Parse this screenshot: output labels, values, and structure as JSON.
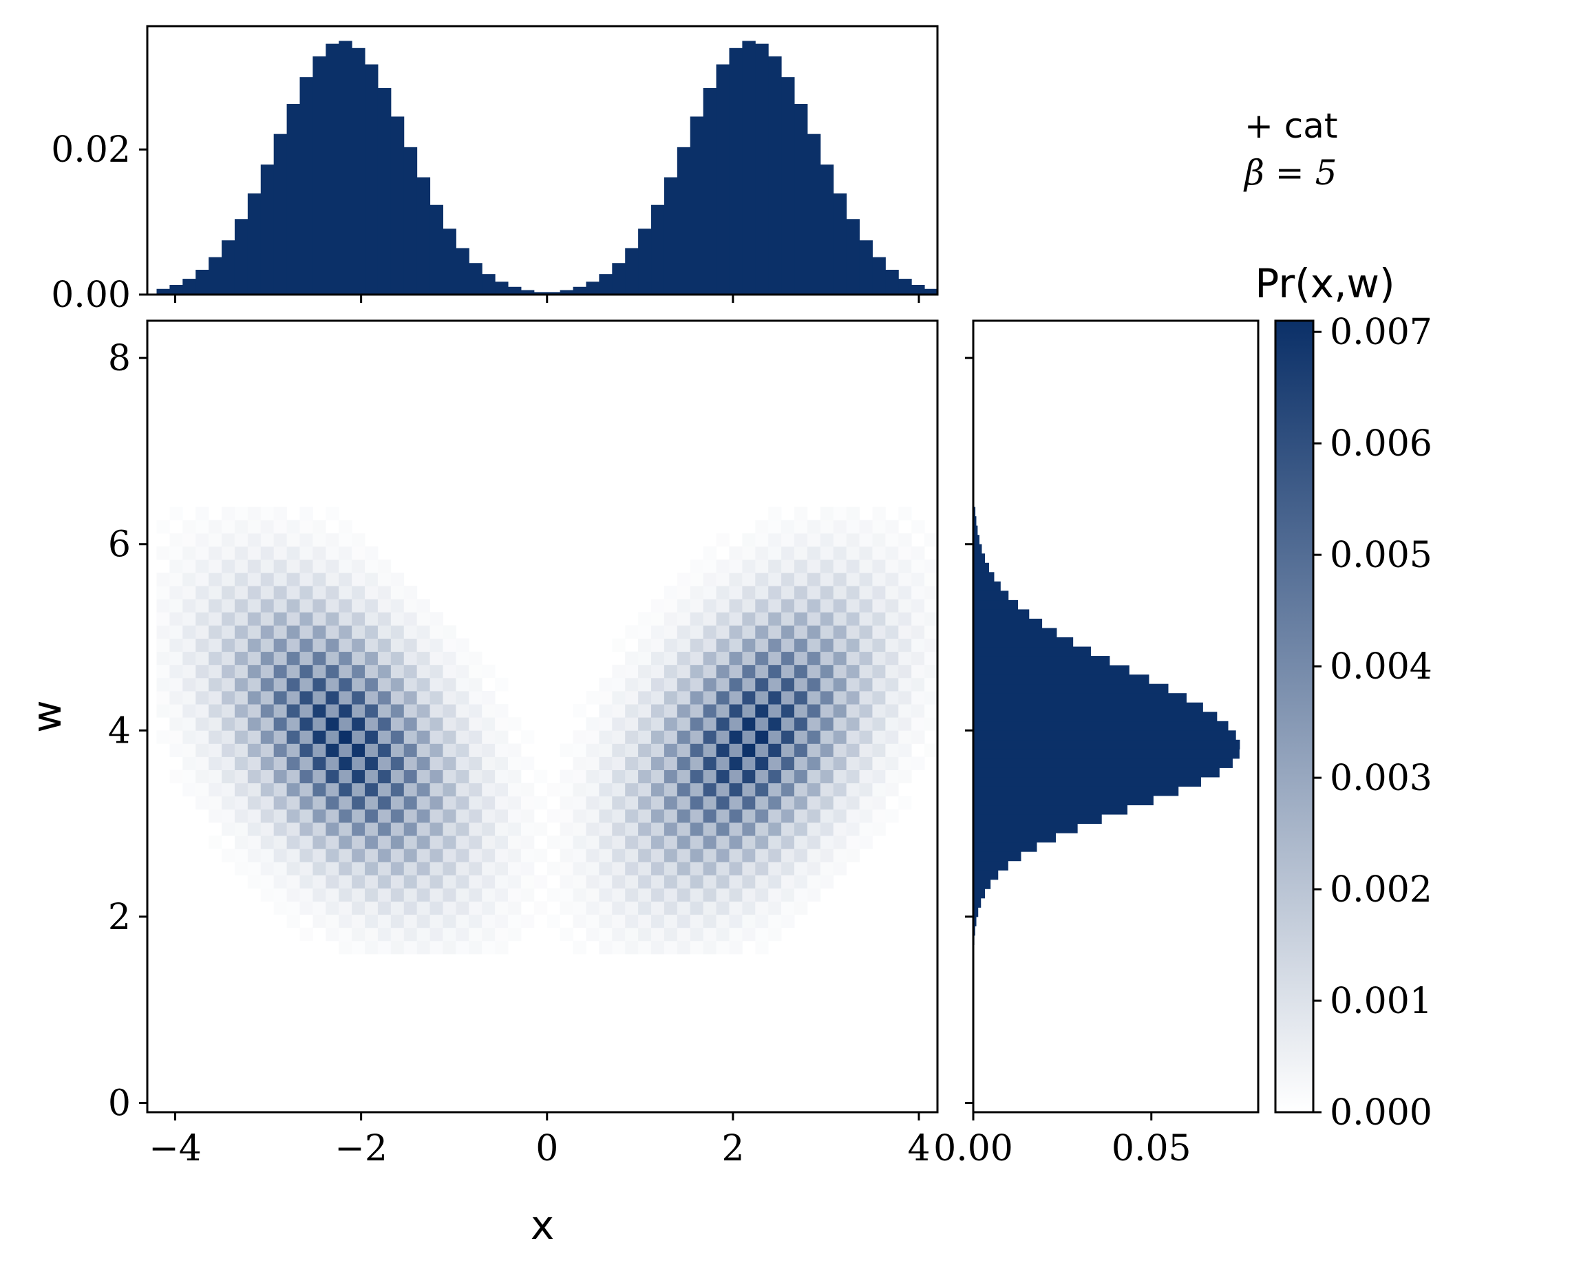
{
  "colors": {
    "bar": "#0b3068",
    "cmap_low": "#ffffff",
    "cmap_high": "#0b3068",
    "frame": "#000000"
  },
  "annotation": {
    "line1": "+ cat",
    "line2": "β = 5"
  },
  "chart_data": [
    {
      "type": "heatmap",
      "name": "joint",
      "xlabel": "x",
      "ylabel": "w",
      "xlim": [
        -4.3,
        4.2
      ],
      "ylim": [
        -0.1,
        8.4
      ],
      "xticks": [
        -4,
        -2,
        0,
        2,
        4
      ],
      "xtick_labels": [
        "−4",
        "−2",
        "0",
        "2",
        "4"
      ],
      "yticks": [
        0,
        2,
        4,
        6,
        8
      ],
      "ytick_labels": [
        "0",
        "2",
        "4",
        "6",
        "8"
      ],
      "grid": false,
      "grid_cells": {
        "x_range": [
          -4.2,
          4.2
        ],
        "x_bins": 60,
        "w_range": [
          1.6,
          6.4
        ],
        "w_bins": 34,
        "pattern": "checkerboard"
      },
      "model": {
        "mode_x": 2.2,
        "sigma_x": 0.78,
        "mode_w": 3.9,
        "sigma_w": 0.82,
        "shape": "bimodal-crescent"
      }
    },
    {
      "type": "bar",
      "name": "marginal-x",
      "xlim": [
        -4.3,
        4.2
      ],
      "ylim": [
        0,
        0.037
      ],
      "yticks": [
        0,
        0.02
      ],
      "ytick_labels": [
        "0.00",
        "0.02"
      ],
      "xticks": [
        -4,
        -2,
        0,
        2,
        4
      ],
      "bins": {
        "range": [
          -4.2,
          4.2
        ],
        "count": 60
      },
      "model": {
        "mode": 2.2,
        "sigma": 0.7,
        "peak": 0.035
      }
    },
    {
      "type": "bar",
      "name": "marginal-w",
      "orientation": "horizontal",
      "xlim": [
        0,
        0.08
      ],
      "ylim": [
        -0.1,
        8.4
      ],
      "xticks": [
        0,
        0.05
      ],
      "xtick_labels": [
        "0.00",
        "0.05"
      ],
      "yticks": [
        0,
        2,
        4,
        6,
        8
      ],
      "bins": {
        "range": [
          1.6,
          6.4
        ],
        "count": 48
      },
      "model": {
        "mode": 3.8,
        "sigma_low": 0.62,
        "sigma_high": 0.82,
        "peak": 0.075
      }
    },
    {
      "type": "colorbar",
      "name": "colorbar",
      "label": "Pr(x,w)",
      "range": [
        0,
        0.0071
      ],
      "ticks": [
        0,
        0.001,
        0.002,
        0.003,
        0.004,
        0.005,
        0.006,
        0.007
      ],
      "tick_labels": [
        "0.000",
        "0.001",
        "0.002",
        "0.003",
        "0.004",
        "0.005",
        "0.006",
        "0.007"
      ]
    }
  ]
}
